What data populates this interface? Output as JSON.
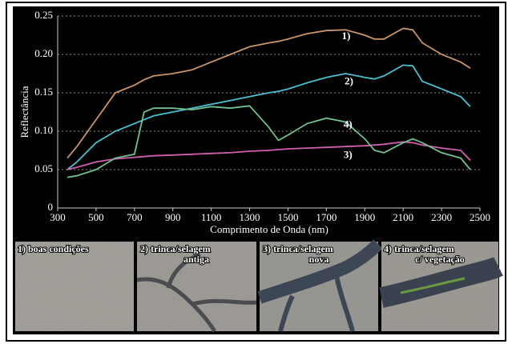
{
  "chart_data": {
    "type": "line",
    "x_label": "Comprimento de Onda (nm)",
    "y_label": "Reflectância",
    "x": [
      350,
      400,
      500,
      600,
      700,
      750,
      800,
      900,
      1000,
      1100,
      1200,
      1300,
      1400,
      1450,
      1500,
      1600,
      1700,
      1800,
      1900,
      1950,
      2000,
      2100,
      2150,
      2200,
      2300,
      2400,
      2450
    ],
    "series": [
      {
        "name": "1)",
        "color": "#c8956a",
        "values": [
          0.065,
          0.08,
          0.115,
          0.15,
          0.16,
          0.167,
          0.172,
          0.175,
          0.18,
          0.19,
          0.2,
          0.21,
          0.215,
          0.217,
          0.22,
          0.227,
          0.231,
          0.232,
          0.225,
          0.22,
          0.22,
          0.234,
          0.232,
          0.215,
          0.2,
          0.19,
          0.182
        ]
      },
      {
        "name": "2)",
        "color": "#4ac0d0",
        "values": [
          0.05,
          0.06,
          0.085,
          0.1,
          0.11,
          0.115,
          0.12,
          0.125,
          0.13,
          0.135,
          0.14,
          0.145,
          0.15,
          0.152,
          0.155,
          0.163,
          0.17,
          0.175,
          0.17,
          0.168,
          0.172,
          0.186,
          0.185,
          0.165,
          0.155,
          0.145,
          0.132
        ]
      },
      {
        "name": "3)",
        "color": "#d060b0",
        "values": [
          0.05,
          0.053,
          0.06,
          0.064,
          0.066,
          0.067,
          0.068,
          0.069,
          0.07,
          0.071,
          0.072,
          0.074,
          0.075,
          0.076,
          0.077,
          0.078,
          0.079,
          0.08,
          0.081,
          0.082,
          0.083,
          0.086,
          0.085,
          0.082,
          0.078,
          0.075,
          0.062
        ]
      },
      {
        "name": "4)",
        "color": "#70c090",
        "values": [
          0.04,
          0.042,
          0.05,
          0.065,
          0.07,
          0.125,
          0.13,
          0.13,
          0.128,
          0.132,
          0.13,
          0.133,
          0.105,
          0.088,
          0.095,
          0.11,
          0.117,
          0.112,
          0.09,
          0.075,
          0.072,
          0.085,
          0.09,
          0.085,
          0.072,
          0.065,
          0.05
        ]
      }
    ],
    "xlim": [
      300,
      2500
    ],
    "xticks": [
      300,
      500,
      700,
      900,
      1100,
      1300,
      1500,
      1700,
      1900,
      2100,
      2300,
      2500
    ],
    "ylim": [
      0,
      0.25
    ],
    "yticks": [
      0,
      0.05,
      {
        "value": 0.1,
        "label": "0.10"
      },
      0.15,
      {
        "value": 0.2,
        "label": "0.20"
      },
      0.25
    ],
    "grid": true
  },
  "panels": [
    {
      "lines": [
        "1) boas condições"
      ]
    },
    {
      "lines": [
        "2) trinca/selagem",
        "antiga"
      ]
    },
    {
      "lines": [
        "3) trinca/selagem",
        "nova"
      ]
    },
    {
      "lines": [
        "4) trinca/selagem",
        "c/ vegetação"
      ]
    }
  ]
}
